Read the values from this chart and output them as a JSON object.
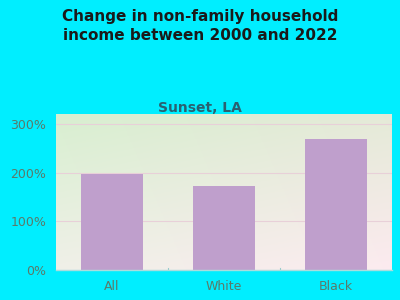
{
  "title": "Change in non-family household\nincome between 2000 and 2022",
  "subtitle": "Sunset, LA",
  "categories": [
    "All",
    "White",
    "Black"
  ],
  "values": [
    197,
    172,
    268
  ],
  "bar_color": "#bf9fcc",
  "background_outer": "#00eeff",
  "background_inner": "#e8f5e0",
  "title_color": "#1a1a1a",
  "subtitle_color": "#2a6070",
  "tick_label_color": "#5a7a6a",
  "grid_color": "#e8d0d8",
  "ylim": [
    0,
    320
  ],
  "yticks": [
    0,
    100,
    200,
    300
  ],
  "title_fontsize": 11,
  "subtitle_fontsize": 10,
  "tick_fontsize": 9
}
